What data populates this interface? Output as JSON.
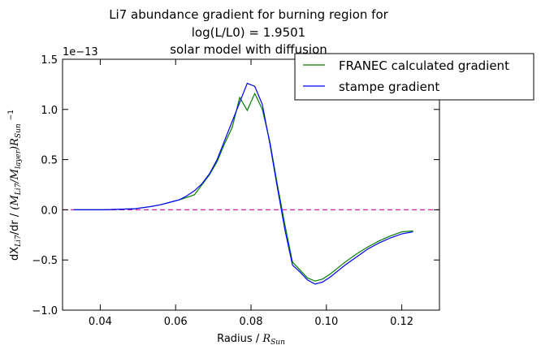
{
  "chart_data": {
    "type": "line",
    "title_lines": [
      "Li7 abundance gradient for burning region for",
      "log(L/L0) = 1.9501",
      "solar model with diffusion"
    ],
    "xlabel": "Radius / R_Sun",
    "xlabel_main": "Radius / ",
    "xlabel_math": "R",
    "xlabel_sub": "Sun",
    "ylabel": "dX_Li7/dr / (M_Li7/M_layer)R_Sun^-1",
    "ylabel_parts": {
      "d": "dX",
      "li7": "Li7",
      "rest": "/dr / ",
      "math": "(M",
      "math_sub1": "Li7",
      "math_mid": "/M",
      "math_sub2": "layer",
      "math_end": ")R",
      "math_sub3": "Sun",
      "exp": "−1"
    },
    "y_offset_label": "1e−13",
    "xlim": [
      0.03,
      0.13
    ],
    "ylim": [
      -1.0,
      1.5
    ],
    "y_scale_factor": "1e-13",
    "x_ticks": [
      0.04,
      0.06,
      0.08,
      0.1,
      0.12
    ],
    "x_tick_labels": [
      "0.04",
      "0.06",
      "0.08",
      "0.10",
      "0.12"
    ],
    "y_ticks": [
      -1.0,
      -0.5,
      0.0,
      0.5,
      1.0,
      1.5
    ],
    "y_tick_labels": [
      "−1.0",
      "−0.5",
      "0.0",
      "0.5",
      "1.0",
      "1.5"
    ],
    "grid": false,
    "legend_position": "upper-right",
    "zero_line": {
      "y": 0.0,
      "color": "#d61fa8",
      "style": "dashed"
    },
    "series": [
      {
        "name": "FRANEC calculated gradient",
        "color": "#008000",
        "x": [
          0.033,
          0.037,
          0.041,
          0.045,
          0.049,
          0.053,
          0.056,
          0.059,
          0.061,
          0.0635,
          0.065,
          0.067,
          0.069,
          0.071,
          0.073,
          0.075,
          0.077,
          0.079,
          0.081,
          0.083,
          0.085,
          0.087,
          0.089,
          0.091,
          0.093,
          0.095,
          0.097,
          0.099,
          0.101,
          0.103,
          0.105,
          0.108,
          0.111,
          0.114,
          0.117,
          0.12,
          0.123
        ],
        "y": [
          0.0,
          0.0,
          0.0,
          0.005,
          0.01,
          0.03,
          0.05,
          0.08,
          0.1,
          0.13,
          0.15,
          0.25,
          0.35,
          0.48,
          0.66,
          0.82,
          1.12,
          0.99,
          1.16,
          1.0,
          0.68,
          0.25,
          -0.15,
          -0.52,
          -0.6,
          -0.68,
          -0.71,
          -0.69,
          -0.64,
          -0.58,
          -0.52,
          -0.44,
          -0.37,
          -0.31,
          -0.26,
          -0.22,
          -0.21
        ]
      },
      {
        "name": "stampe gradient",
        "color": "#0000ff",
        "x": [
          0.033,
          0.037,
          0.041,
          0.045,
          0.049,
          0.053,
          0.056,
          0.059,
          0.061,
          0.063,
          0.065,
          0.067,
          0.069,
          0.071,
          0.073,
          0.075,
          0.077,
          0.079,
          0.081,
          0.083,
          0.085,
          0.087,
          0.089,
          0.091,
          0.093,
          0.095,
          0.097,
          0.099,
          0.101,
          0.103,
          0.105,
          0.108,
          0.111,
          0.114,
          0.117,
          0.12,
          0.123
        ],
        "y": [
          0.0,
          0.0,
          0.0,
          0.005,
          0.01,
          0.03,
          0.05,
          0.08,
          0.1,
          0.14,
          0.19,
          0.26,
          0.36,
          0.5,
          0.69,
          0.88,
          1.07,
          1.26,
          1.23,
          1.05,
          0.66,
          0.22,
          -0.2,
          -0.55,
          -0.62,
          -0.7,
          -0.74,
          -0.72,
          -0.67,
          -0.61,
          -0.55,
          -0.47,
          -0.39,
          -0.33,
          -0.28,
          -0.24,
          -0.22
        ]
      }
    ]
  }
}
